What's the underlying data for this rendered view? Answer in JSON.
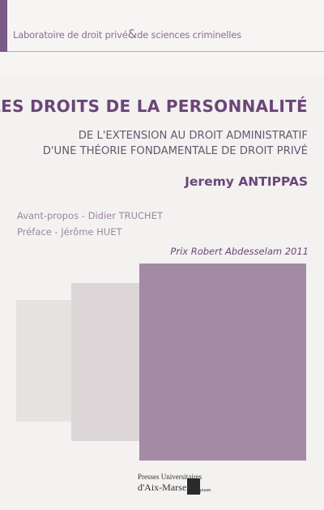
{
  "series": {
    "part1": "Laboratoire de droit privé",
    "amp": "&",
    "part2": "de sciences criminelles"
  },
  "book": {
    "title": "LES DROITS DE LA PERSONNALITÉ",
    "subtitle_line1": "DE L'EXTENSION AU DROIT ADMINISTRATIF",
    "subtitle_line2": "D'UNE THÉORIE FONDAMENTALE DE DROIT PRIVÉ",
    "author": "Jeremy ANTIPPAS",
    "foreword": "Avant-propos - Didier TRUCHET",
    "preface": "Préface - Jérôme HUET",
    "prize": "Prix Robert Abdesselam 2011"
  },
  "publisher": {
    "line1": "Presses Universitaires",
    "line2": "d'Aix-Marseille",
    "mark_suffix": "puam"
  },
  "colors": {
    "accent": "#6b4579",
    "square_light": "#e6e2e0",
    "square_mid": "#ddd6d9",
    "square_dark": "#a48aa5"
  }
}
